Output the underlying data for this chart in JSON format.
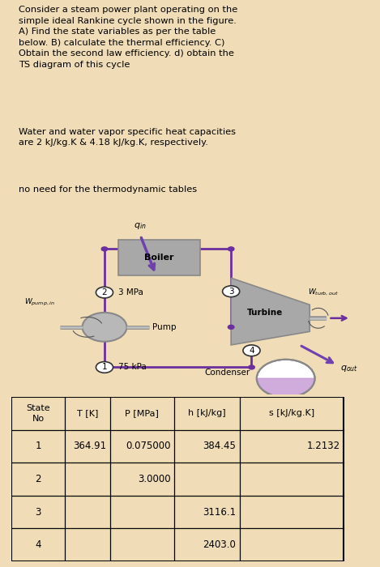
{
  "bg_color": "#f0ddb8",
  "text_color": "#000000",
  "title_text": "Consider a steam power plant operating on the\nsimple ideal Rankine cycle shown in the figure.\nA) Find the state variables as per the table\nbelow. B) calculate the thermal efficiency. C)\nObtain the second law efficiency. d) obtain the\nTS diagram of this cycle",
  "subtitle1": "Water and water vapor specific heat capacities\nare 2 kJ/kg.K & 4.18 kJ/kg.K, respectively.",
  "subtitle2": "no need for the thermodynamic tables",
  "pipe_color": "#6b2f9e",
  "boiler_facecolor": "#a8a8a8",
  "boiler_edgecolor": "#888888",
  "turbine_facecolor": "#a8a8a8",
  "turbine_edgecolor": "#888888",
  "pump_facecolor": "#b8b8b8",
  "pump_edgecolor": "#888888",
  "condenser_fill": "#c090d0",
  "condenser_edge": "#888888",
  "arrow_color": "#6b2f9e",
  "qin_arrow_color": "#7040b0",
  "state_circle_edge": "#333333",
  "diagram_bg": "#f5f0e8",
  "diagram_border": "#cccccc",
  "table_rows": [
    [
      "1",
      "364.91",
      "0.075000",
      "384.45",
      "1.2132"
    ],
    [
      "2",
      "",
      "3.0000",
      "",
      ""
    ],
    [
      "3",
      "",
      "",
      "3116.1",
      ""
    ],
    [
      "4",
      "",
      "",
      "2403.0",
      ""
    ]
  ]
}
